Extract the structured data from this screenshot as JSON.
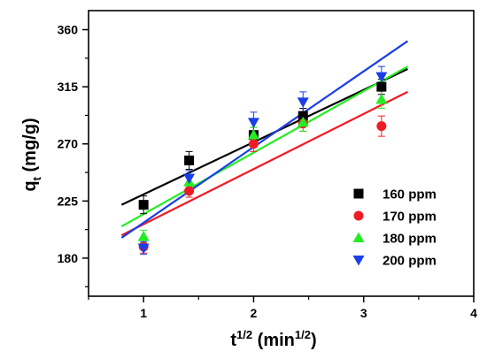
{
  "chart_data": {
    "type": "scatter",
    "xlim": [
      0.5,
      4
    ],
    "ylim": [
      150,
      375
    ],
    "x_ticks": [
      1,
      2,
      3,
      4
    ],
    "x_tick_labels": [
      "1",
      "2",
      "3",
      "4"
    ],
    "y_ticks": [
      180,
      225,
      270,
      315,
      360
    ],
    "y_tick_labels": [
      "180",
      "225",
      "270",
      "315",
      "360"
    ],
    "xlabel": {
      "base": "t",
      "sup": "1/2",
      "unit_open": " (min",
      "unit_sup": "1/2",
      "unit_close": ")"
    },
    "ylabel": {
      "base": "q",
      "sub": "t",
      "unit": " (mg/g)"
    },
    "legend_position": "bottom-right",
    "grid": false,
    "series": [
      {
        "name": "160 ppm",
        "color": "#000000",
        "marker": "square",
        "x": [
          1.0,
          1.414,
          2.0,
          2.449,
          3.162
        ],
        "y": [
          222,
          257,
          277,
          292,
          315
        ],
        "err": [
          7,
          7,
          6,
          6,
          6
        ],
        "fit": {
          "x": [
            0.8,
            3.4
          ],
          "y": [
            222,
            329
          ]
        }
      },
      {
        "name": "170 ppm",
        "color": "#ee1c24",
        "marker": "circle",
        "x": [
          1.0,
          1.414,
          2.0,
          2.449,
          3.162
        ],
        "y": [
          189,
          233,
          270,
          286,
          284
        ],
        "err": [
          5,
          5,
          6,
          6,
          8
        ],
        "fit": {
          "x": [
            0.8,
            3.4
          ],
          "y": [
            198,
            311
          ]
        }
      },
      {
        "name": "180 ppm",
        "color": "#22ee22",
        "marker": "triangle-up",
        "x": [
          1.0,
          1.414,
          2.0,
          2.449,
          3.162
        ],
        "y": [
          197,
          240,
          277,
          287,
          305
        ],
        "err": [
          5,
          5,
          6,
          7,
          7
        ],
        "fit": {
          "x": [
            0.8,
            3.4
          ],
          "y": [
            205,
            331
          ]
        }
      },
      {
        "name": "200 ppm",
        "color": "#1a3ee8",
        "marker": "triangle-down",
        "x": [
          1.0,
          1.414,
          2.0,
          2.449,
          3.162
        ],
        "y": [
          188,
          243,
          287,
          303,
          323
        ],
        "err": [
          5,
          6,
          8,
          8,
          8
        ],
        "fit": {
          "x": [
            0.8,
            3.4
          ],
          "y": [
            196,
            351
          ]
        }
      }
    ]
  }
}
